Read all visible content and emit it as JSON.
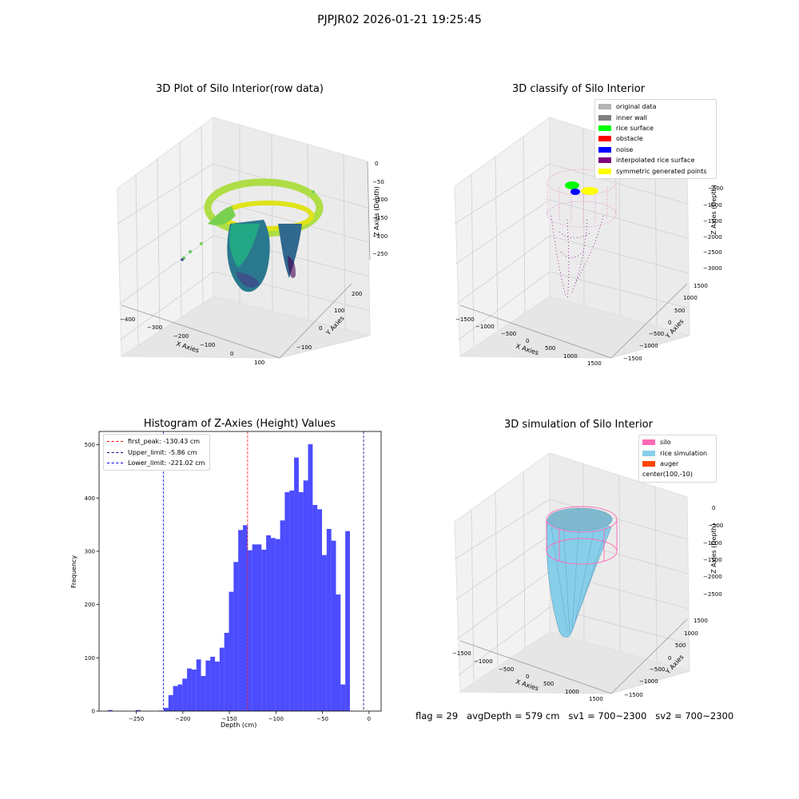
{
  "figure_title": "PJPJR02 2026-01-21 19:25:45",
  "plot1": {
    "title": "3D Plot of Silo Interior(row data)",
    "x_label": "X Axies",
    "y_label": "Y Axies",
    "z_label": "Z Axies (Depth)",
    "x_ticks": [
      "−400",
      "−300",
      "−200",
      "−100",
      "0",
      "100"
    ],
    "y_ticks": [
      "−100",
      "0",
      "100",
      "200"
    ],
    "z_ticks": [
      "0",
      "−50",
      "−100",
      "−150",
      "−200",
      "−250"
    ],
    "colormap": "viridis"
  },
  "plot2": {
    "title": "3D classify of Silo Interior",
    "x_label": "X Axies",
    "y_label": "Y Axies",
    "z_label": "Z Axies (Depth)",
    "x_ticks": [
      "−1500",
      "−1000",
      "−500",
      "0",
      "500",
      "1000",
      "1500"
    ],
    "y_ticks": [
      "−1500",
      "−1000",
      "−500",
      "0",
      "500",
      "1000",
      "1500"
    ],
    "z_ticks": [
      "−500",
      "−1000",
      "−1500",
      "−2000",
      "−2500",
      "−3000"
    ],
    "legend": [
      {
        "label": "original data",
        "color": "#b3b3b3"
      },
      {
        "label": "inner wall",
        "color": "#808080"
      },
      {
        "label": "rice surface",
        "color": "#00ff00"
      },
      {
        "label": "obstacle",
        "color": "#ff0000"
      },
      {
        "label": "noise",
        "color": "#0000ff"
      },
      {
        "label": "interpolated rice surface",
        "color": "#800080"
      },
      {
        "label": "symmetric generated points",
        "color": "#ffff00"
      }
    ]
  },
  "plot4": {
    "title": "3D simulation of Silo Interior",
    "x_label": "X Axies",
    "y_label": "Y Axies",
    "z_label": "Z Axies (Depth)",
    "x_ticks": [
      "−1500",
      "−1000",
      "−500",
      "0",
      "500",
      "1000",
      "1500"
    ],
    "y_ticks": [
      "−1500",
      "−1000",
      "−500",
      "0",
      "500",
      "1000",
      "1500"
    ],
    "z_ticks": [
      "0",
      "−500",
      "−1000",
      "−1500",
      "−2000",
      "−2500"
    ],
    "legend": [
      {
        "label": "silo",
        "color": "#ff69b4"
      },
      {
        "label": "rice simulation",
        "color": "#87ceeb"
      },
      {
        "label": "auger",
        "color": "#ff4500"
      },
      {
        "label": "center(100,-10)",
        "color": ""
      }
    ]
  },
  "chart_data": {
    "type": "bar",
    "title": "Histogram of Z-Axies (Height) Values",
    "xlabel": "Depth (cm)",
    "ylabel": "Frequency",
    "xlim": [
      -290,
      13
    ],
    "ylim": [
      0,
      525
    ],
    "x_ticks": [
      -250,
      -200,
      -150,
      -100,
      -50,
      0
    ],
    "y_ticks": [
      0,
      100,
      200,
      300,
      400,
      500
    ],
    "bar_color": "#0000ff",
    "bin_start": -280.5,
    "bin_width": 5.0,
    "values": [
      2,
      0,
      0,
      0,
      0,
      0,
      2,
      0,
      0,
      0,
      0,
      1,
      6,
      30,
      47,
      50,
      61,
      80,
      78,
      97,
      66,
      95,
      102,
      93,
      119,
      147,
      224,
      280,
      340,
      349,
      302,
      313,
      313,
      303,
      330,
      325,
      323,
      358,
      411,
      414,
      476,
      411,
      433,
      501,
      387,
      379,
      293,
      342,
      320,
      219,
      50,
      338
    ],
    "vlines": [
      {
        "label": "first_peak: -130.43 cm",
        "x": -130.43,
        "color": "#ff0000"
      },
      {
        "label": "Upper_limit: -5.86 cm",
        "x": -5.86,
        "color": "#00008b"
      },
      {
        "label": "Lower_limit: -221.02 cm",
        "x": -221.02,
        "color": "#0000ff"
      }
    ]
  },
  "footer": {
    "flag": "flag = 29",
    "avg_depth": "avgDepth = 579 cm",
    "sv1": "sv1 = 700~2300",
    "sv2": "sv2 = 700~2300"
  }
}
